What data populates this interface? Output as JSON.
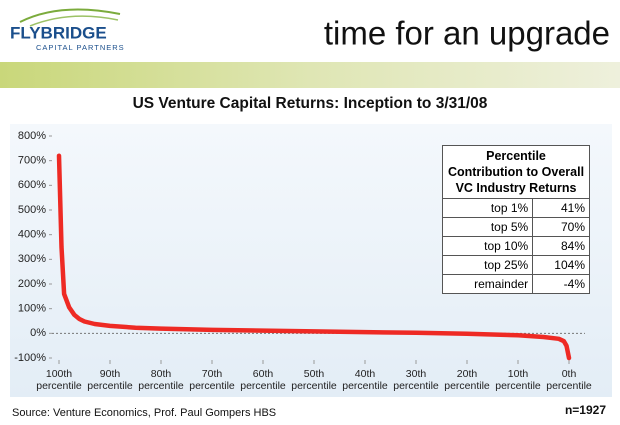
{
  "header": {
    "logo": "FLYBRIDGE",
    "logo_sub": "CAPITAL PARTNERS",
    "title": "time for an upgrade"
  },
  "chart_data": {
    "type": "line",
    "title": "US Venture Capital Returns: Inception to 3/31/08",
    "x": [
      100,
      99.5,
      99,
      98,
      97,
      96,
      95,
      93,
      90,
      85,
      80,
      70,
      60,
      50,
      40,
      30,
      20,
      10,
      5,
      2,
      1,
      0.5,
      0
    ],
    "values": [
      720,
      350,
      160,
      105,
      75,
      58,
      48,
      38,
      30,
      23,
      19,
      14,
      11,
      8,
      5,
      2,
      -2,
      -8,
      -15,
      -22,
      -32,
      -50,
      -100
    ],
    "color": "#ee2a24",
    "xlim": [
      100,
      0
    ],
    "xticks": [
      {
        "value": 100,
        "label": "100th percentile"
      },
      {
        "value": 90,
        "label": "90th percentile"
      },
      {
        "value": 80,
        "label": "80th percentile"
      },
      {
        "value": 70,
        "label": "70th percentile"
      },
      {
        "value": 60,
        "label": "60th percentile"
      },
      {
        "value": 50,
        "label": "50th percentile"
      },
      {
        "value": 40,
        "label": "40th percentile"
      },
      {
        "value": 30,
        "label": "30th percentile"
      },
      {
        "value": 20,
        "label": "20th percentile"
      },
      {
        "value": 10,
        "label": "10th percentile"
      },
      {
        "value": 0,
        "label": "0th percentile"
      }
    ],
    "ylim": [
      -100,
      800
    ],
    "yticks": [
      {
        "value": 800,
        "label": "800%"
      },
      {
        "value": 700,
        "label": "700%"
      },
      {
        "value": 600,
        "label": "600%"
      },
      {
        "value": 500,
        "label": "500%"
      },
      {
        "value": 400,
        "label": "400%"
      },
      {
        "value": 300,
        "label": "300%"
      },
      {
        "value": 200,
        "label": "200%"
      },
      {
        "value": 100,
        "label": "100%"
      },
      {
        "value": 0,
        "label": "0%"
      },
      {
        "value": -100,
        "label": "-100%"
      }
    ],
    "grid": false
  },
  "table": {
    "header": "Percentile Contribution to Overall VC Industry Returns",
    "rows": [
      [
        "top 1%",
        "41%"
      ],
      [
        "top 5%",
        "70%"
      ],
      [
        "top 10%",
        "84%"
      ],
      [
        "top 25%",
        "104%"
      ],
      [
        "remainder",
        "-4%"
      ]
    ]
  },
  "footer": {
    "source": "Source: Venture Economics, Prof. Paul Gompers HBS",
    "n": "n=1927"
  }
}
